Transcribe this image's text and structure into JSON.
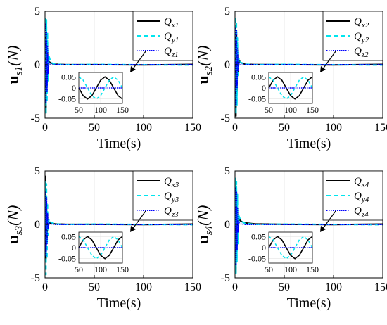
{
  "chart_data": [
    {
      "type": "line",
      "panel": "s1",
      "ylabel": "u_s1(N)",
      "ylabel_main": "u",
      "ylabel_sub": "s1",
      "ylabel_unit": "(N)",
      "xlabel": "Time(s)",
      "xlim": [
        0,
        150
      ],
      "ylim": [
        -5,
        5
      ],
      "xticks": [
        "0",
        "50",
        "100",
        "150"
      ],
      "yticks": [
        "5",
        "0",
        "-5"
      ],
      "grid": true,
      "legend_position": "top-right",
      "series": [
        {
          "name": "Q_x1",
          "label_main": "Q",
          "label_sub": "x1",
          "color": "#000000",
          "dash": "solid",
          "x": [
            0,
            0.5,
            1,
            1.5,
            2,
            2.5,
            3,
            4,
            6,
            10,
            20,
            50,
            100,
            150
          ],
          "values": [
            0,
            3.0,
            -4.5,
            2.5,
            -2.0,
            1.2,
            -0.5,
            0.3,
            0.15,
            0.05,
            0.02,
            0.01,
            -0.02,
            0.03
          ]
        },
        {
          "name": "Q_y1",
          "label_main": "Q",
          "label_sub": "y1",
          "color": "#00e5ee",
          "dash": "dash",
          "x": [
            0,
            0.5,
            1,
            1.5,
            2,
            2.5,
            3,
            4,
            6,
            10,
            20,
            50,
            100,
            150
          ],
          "values": [
            0,
            4.5,
            -4.6,
            4.2,
            -3.5,
            3.0,
            -1.5,
            0.8,
            0.2,
            0.05,
            0.0,
            0.03,
            0.0,
            -0.03
          ]
        },
        {
          "name": "Q_z1",
          "label_main": "Q",
          "label_sub": "z1",
          "color": "#0000ff",
          "dash": "dot",
          "x": [
            0,
            0.5,
            1,
            1.5,
            2,
            2.5,
            3,
            4,
            6,
            10,
            20,
            50,
            100,
            150
          ],
          "values": [
            0,
            3.8,
            -3.5,
            3.0,
            -2.5,
            1.8,
            -0.8,
            0.2,
            0.05,
            0.0,
            0.0,
            0.0,
            0.0,
            0.0
          ]
        }
      ],
      "inset": {
        "xlim": [
          50,
          150
        ],
        "ylim": [
          -0.07,
          0.07
        ],
        "xticks": [
          "50",
          "100",
          "150"
        ],
        "yticks": [
          "0.05",
          "0",
          "-0.05"
        ],
        "series": [
          {
            "name": "Q_x1",
            "x": [
              50,
              60,
              70,
              80,
              90,
              100,
              110,
              120,
              130,
              140,
              150
            ],
            "values": [
              0.0,
              -0.035,
              -0.05,
              -0.035,
              0.0,
              0.035,
              0.05,
              0.035,
              0.0,
              -0.035,
              -0.05
            ]
          },
          {
            "name": "Q_y1",
            "x": [
              50,
              60,
              70,
              80,
              90,
              100,
              110,
              120,
              130,
              140,
              150
            ],
            "values": [
              0.05,
              0.035,
              0.0,
              -0.035,
              -0.05,
              -0.035,
              0.0,
              0.035,
              0.05,
              0.035,
              0.0
            ]
          },
          {
            "name": "Q_z1",
            "x": [
              50,
              150
            ],
            "values": [
              0.0,
              0.0
            ]
          }
        ]
      }
    },
    {
      "type": "line",
      "panel": "s2",
      "ylabel": "u_s2(N)",
      "ylabel_main": "u",
      "ylabel_sub": "s2",
      "ylabel_unit": "(N)",
      "xlabel": "Time(s)",
      "xlim": [
        0,
        150
      ],
      "ylim": [
        -5,
        5
      ],
      "xticks": [
        "0",
        "50",
        "100",
        "150"
      ],
      "yticks": [
        "5",
        "0",
        "-5"
      ],
      "grid": true,
      "legend_position": "top-right",
      "series": [
        {
          "name": "Q_x2",
          "label_main": "Q",
          "label_sub": "x2",
          "color": "#000000",
          "dash": "solid",
          "x": [
            0,
            0.5,
            1,
            1.5,
            2,
            2.5,
            3,
            4,
            6,
            10,
            20,
            50,
            100,
            150
          ],
          "values": [
            0,
            2.5,
            -4.8,
            3.0,
            -2.5,
            1.5,
            -0.8,
            0.4,
            0.2,
            0.05,
            0.02,
            0.01,
            -0.02,
            0.03
          ]
        },
        {
          "name": "Q_y2",
          "label_main": "Q",
          "label_sub": "y2",
          "color": "#00e5ee",
          "dash": "dash",
          "x": [
            0,
            0.5,
            1,
            1.5,
            2,
            2.5,
            3,
            4,
            6,
            10,
            20,
            50,
            100,
            150
          ],
          "values": [
            0,
            4.5,
            -4.6,
            4.0,
            -3.8,
            2.5,
            -1.2,
            0.6,
            0.2,
            0.05,
            0.0,
            0.03,
            0.0,
            -0.03
          ]
        },
        {
          "name": "Q_z2",
          "label_main": "Q",
          "label_sub": "z2",
          "color": "#0000ff",
          "dash": "dot",
          "x": [
            0,
            0.5,
            1,
            1.5,
            2,
            2.5,
            3,
            4,
            6,
            10,
            20,
            50,
            100,
            150
          ],
          "values": [
            0,
            3.5,
            -3.8,
            3.2,
            -2.2,
            1.5,
            -0.6,
            0.2,
            0.05,
            0.0,
            0.0,
            0.0,
            0.0,
            0.0
          ]
        }
      ],
      "inset": {
        "xlim": [
          50,
          150
        ],
        "ylim": [
          -0.07,
          0.07
        ],
        "xticks": [
          "50",
          "100",
          "150"
        ],
        "yticks": [
          "0.05",
          "0",
          "-0.05"
        ],
        "series": [
          {
            "name": "Q_x2",
            "x": [
              50,
              60,
              70,
              80,
              90,
              100,
              110,
              120,
              130,
              140,
              150
            ],
            "values": [
              0.0,
              0.035,
              0.05,
              0.035,
              0.0,
              -0.035,
              -0.05,
              -0.035,
              0.0,
              0.035,
              0.05
            ]
          },
          {
            "name": "Q_y2",
            "x": [
              50,
              60,
              70,
              80,
              90,
              100,
              110,
              120,
              130,
              140,
              150
            ],
            "values": [
              0.05,
              0.035,
              0.0,
              -0.035,
              -0.05,
              -0.035,
              0.0,
              0.035,
              0.05,
              0.035,
              0.0
            ]
          },
          {
            "name": "Q_z2",
            "x": [
              50,
              150
            ],
            "values": [
              0.0,
              0.0
            ]
          }
        ]
      }
    },
    {
      "type": "line",
      "panel": "s3",
      "ylabel": "u_s3(N)",
      "ylabel_main": "u",
      "ylabel_sub": "s3",
      "ylabel_unit": "(N)",
      "xlabel": "Time(s)",
      "xlim": [
        0,
        150
      ],
      "ylim": [
        -5,
        5
      ],
      "xticks": [
        "0",
        "50",
        "100",
        "150"
      ],
      "yticks": [
        "5",
        "0",
        "-5"
      ],
      "grid": true,
      "legend_position": "top-right",
      "series": [
        {
          "name": "Q_x3",
          "label_main": "Q",
          "label_sub": "x3",
          "color": "#000000",
          "dash": "solid",
          "x": [
            0,
            0.5,
            1,
            1.5,
            2,
            2.5,
            3,
            4,
            6,
            10,
            20,
            50,
            100,
            150
          ],
          "values": [
            0,
            4.5,
            -3.5,
            2.0,
            -1.5,
            0.8,
            -0.4,
            0.2,
            0.1,
            0.05,
            0.02,
            0.01,
            -0.02,
            0.03
          ]
        },
        {
          "name": "Q_y3",
          "label_main": "Q",
          "label_sub": "y3",
          "color": "#00e5ee",
          "dash": "dash",
          "x": [
            0,
            0.5,
            1,
            1.5,
            2,
            2.5,
            3,
            4,
            6,
            10,
            20,
            50,
            100,
            150
          ],
          "values": [
            0,
            4.0,
            -4.7,
            3.8,
            -3.2,
            2.0,
            -1.0,
            0.5,
            0.2,
            0.05,
            0.0,
            0.03,
            0.0,
            -0.03
          ]
        },
        {
          "name": "Q_z3",
          "label_main": "Q",
          "label_sub": "z3",
          "color": "#0000ff",
          "dash": "dot",
          "x": [
            0,
            0.5,
            1,
            1.5,
            2,
            2.5,
            3,
            4,
            6,
            10,
            20,
            50,
            100,
            150
          ],
          "values": [
            0,
            3.0,
            -3.0,
            2.5,
            -1.8,
            1.0,
            -0.4,
            0.1,
            0.05,
            0.0,
            0.0,
            0.0,
            0.0,
            0.0
          ]
        }
      ],
      "inset": {
        "xlim": [
          50,
          150
        ],
        "ylim": [
          -0.07,
          0.07
        ],
        "xticks": [
          "50",
          "100",
          "150"
        ],
        "yticks": [
          "0.05",
          "0",
          "-0.05"
        ],
        "series": [
          {
            "name": "Q_x3",
            "x": [
              50,
              60,
              70,
              80,
              90,
              100,
              110,
              120,
              130,
              140,
              150
            ],
            "values": [
              0.0,
              0.035,
              0.05,
              0.035,
              0.0,
              -0.035,
              -0.05,
              -0.035,
              0.0,
              0.035,
              0.05
            ]
          },
          {
            "name": "Q_y3",
            "x": [
              50,
              60,
              70,
              80,
              90,
              100,
              110,
              120,
              130,
              140,
              150
            ],
            "values": [
              0.05,
              0.035,
              0.0,
              -0.035,
              -0.05,
              -0.035,
              0.0,
              0.035,
              0.05,
              0.035,
              0.0
            ]
          },
          {
            "name": "Q_z3",
            "x": [
              50,
              150
            ],
            "values": [
              0.0,
              0.0
            ]
          }
        ]
      }
    },
    {
      "type": "line",
      "panel": "s4",
      "ylabel": "u_s4(N)",
      "ylabel_main": "u",
      "ylabel_sub": "s4",
      "ylabel_unit": "(N)",
      "xlabel": "Time(s)",
      "xlim": [
        0,
        150
      ],
      "ylim": [
        -5,
        5
      ],
      "xticks": [
        "0",
        "50",
        "100",
        "150"
      ],
      "yticks": [
        "5",
        "0",
        "-5"
      ],
      "grid": true,
      "legend_position": "top-right",
      "series": [
        {
          "name": "Q_x4",
          "label_main": "Q",
          "label_sub": "x4",
          "color": "#000000",
          "dash": "solid",
          "x": [
            0,
            0.5,
            1,
            1.5,
            2,
            2.5,
            3,
            4,
            6,
            10,
            20,
            50,
            100,
            150
          ],
          "values": [
            0,
            4.0,
            -4.5,
            3.0,
            -2.0,
            1.2,
            -0.6,
            0.5,
            0.3,
            0.15,
            0.05,
            0.01,
            -0.02,
            0.03
          ]
        },
        {
          "name": "Q_y4",
          "label_main": "Q",
          "label_sub": "y4",
          "color": "#00e5ee",
          "dash": "dash",
          "x": [
            0,
            0.5,
            1,
            1.5,
            2,
            2.5,
            3,
            4,
            6,
            10,
            20,
            50,
            100,
            150
          ],
          "values": [
            0,
            4.3,
            -4.6,
            4.0,
            -3.5,
            2.8,
            -1.8,
            0.8,
            0.3,
            0.1,
            0.0,
            0.03,
            0.0,
            -0.03
          ]
        },
        {
          "name": "Q_z4",
          "label_main": "Q",
          "label_sub": "z4",
          "color": "#0000ff",
          "dash": "dot",
          "x": [
            0,
            0.5,
            1,
            1.5,
            2,
            2.5,
            3,
            4,
            6,
            10,
            20,
            50,
            100,
            150
          ],
          "values": [
            0,
            3.5,
            -3.8,
            3.0,
            -2.4,
            1.6,
            -0.7,
            0.2,
            0.05,
            0.0,
            0.0,
            0.0,
            0.0,
            0.0
          ]
        }
      ],
      "inset": {
        "xlim": [
          50,
          150
        ],
        "ylim": [
          -0.07,
          0.07
        ],
        "xticks": [
          "50",
          "100",
          "150"
        ],
        "yticks": [
          "0.05",
          "0",
          "-0.05"
        ],
        "series": [
          {
            "name": "Q_x4",
            "x": [
              50,
              60,
              70,
              80,
              90,
              100,
              110,
              120,
              130,
              140,
              150
            ],
            "values": [
              0.0,
              0.035,
              0.05,
              0.035,
              0.0,
              -0.035,
              -0.05,
              -0.035,
              0.0,
              0.035,
              0.05
            ]
          },
          {
            "name": "Q_y4",
            "x": [
              50,
              60,
              70,
              80,
              90,
              100,
              110,
              120,
              130,
              140,
              150
            ],
            "values": [
              0.05,
              0.035,
              0.0,
              -0.035,
              -0.05,
              -0.035,
              0.0,
              0.035,
              0.05,
              0.035,
              0.0
            ]
          },
          {
            "name": "Q_z4",
            "x": [
              50,
              150
            ],
            "values": [
              0.0,
              0.0
            ]
          }
        ]
      }
    }
  ]
}
